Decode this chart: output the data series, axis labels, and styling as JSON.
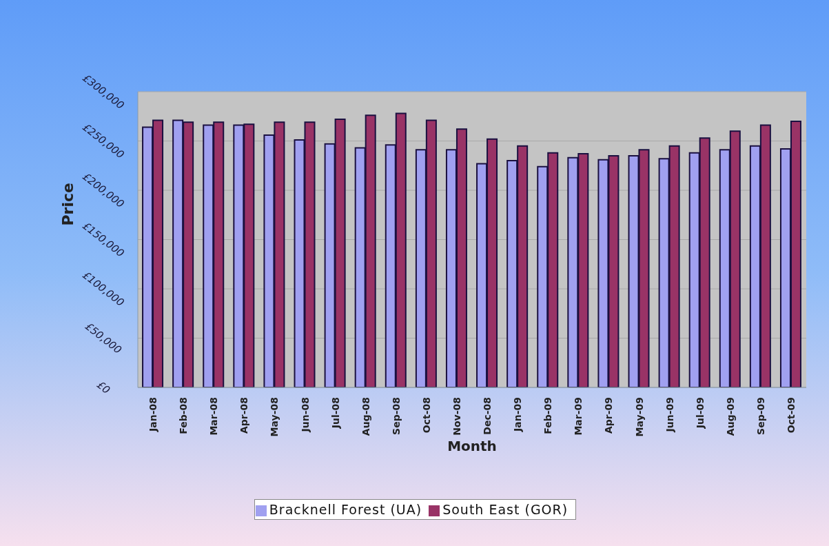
{
  "chart_data": {
    "type": "bar",
    "xlabel": "Month",
    "ylabel": "Price",
    "categories": [
      "Jan-08",
      "Feb-08",
      "Mar-08",
      "Apr-08",
      "May-08",
      "Jun-08",
      "Jul-08",
      "Aug-08",
      "Sep-08",
      "Oct-08",
      "Nov-08",
      "Dec-08",
      "Jan-09",
      "Feb-09",
      "Mar-09",
      "Apr-09",
      "May-09",
      "Jun-09",
      "Jul-09",
      "Aug-09",
      "Sep-09",
      "Oct-09"
    ],
    "series": [
      {
        "name": "Bracknell Forest (UA)",
        "color": "#a0a0f0",
        "values": [
          264000,
          271000,
          266000,
          266000,
          256000,
          251000,
          247000,
          243000,
          246000,
          241000,
          241000,
          227000,
          230000,
          224000,
          233000,
          231000,
          235000,
          232000,
          238000,
          241000,
          245000,
          242000
        ]
      },
      {
        "name": "South East (GOR)",
        "color": "#993366",
        "values": [
          271000,
          269000,
          269000,
          267000,
          269000,
          269000,
          272000,
          276000,
          278000,
          271000,
          262000,
          252000,
          245000,
          238000,
          237000,
          235000,
          241000,
          245000,
          253000,
          260000,
          266000,
          270000
        ]
      }
    ],
    "ylim": [
      0,
      300000
    ],
    "yticks": [
      {
        "value": 0,
        "label": "£0"
      },
      {
        "value": 50000,
        "label": "£50,000"
      },
      {
        "value": 100000,
        "label": "£100,000"
      },
      {
        "value": 150000,
        "label": "£150,000"
      },
      {
        "value": 200000,
        "label": "£200,000"
      },
      {
        "value": 250000,
        "label": "£250,000"
      },
      {
        "value": 300000,
        "label": "£300,000"
      }
    ],
    "grid": "y",
    "legend": "bottom"
  }
}
